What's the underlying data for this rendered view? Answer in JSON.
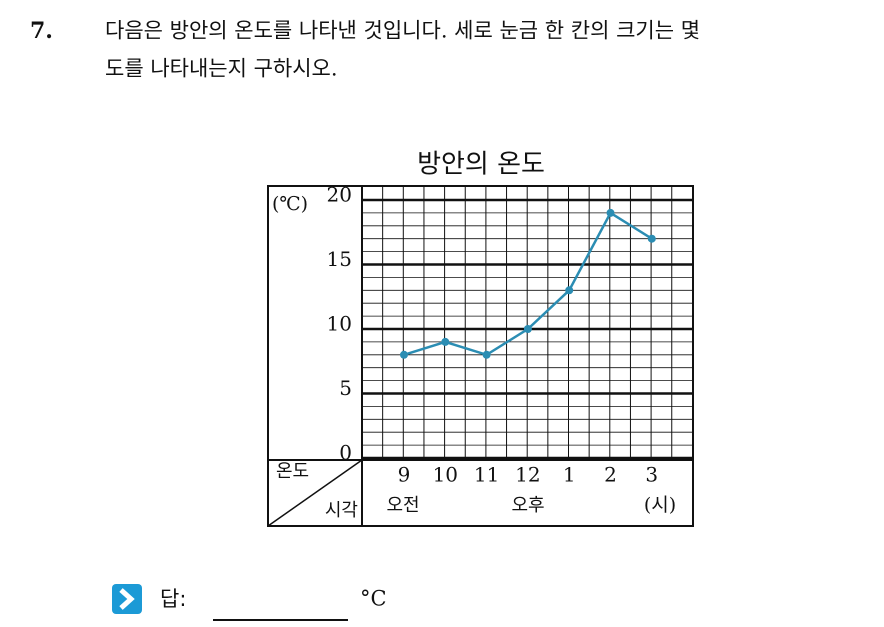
{
  "question": {
    "number": "7.",
    "lines": [
      "다음은 방안의 온도를 나타낸 것입니다. 세로 눈금 한 칸의 크기는 몇",
      "도를 나타내는지 구하시오."
    ]
  },
  "chart_data": {
    "type": "line",
    "title": "방안의 온도",
    "y_unit": "(℃)",
    "categories": [
      "9",
      "10",
      "11",
      "12",
      "1",
      "2",
      "3"
    ],
    "category_groups": [
      "오전",
      "오후"
    ],
    "x_unit": "(시)",
    "corner_top": "온도",
    "corner_bottom": "시각",
    "values": [
      8,
      9,
      8,
      10,
      13,
      19,
      17
    ],
    "color": "#2b8db3",
    "ylim": [
      0,
      20
    ],
    "yticks": [
      0,
      5,
      10,
      15,
      20
    ],
    "minor_grid_step": 1,
    "grid": true
  },
  "answer": {
    "label": "답:",
    "unit": "°C"
  }
}
